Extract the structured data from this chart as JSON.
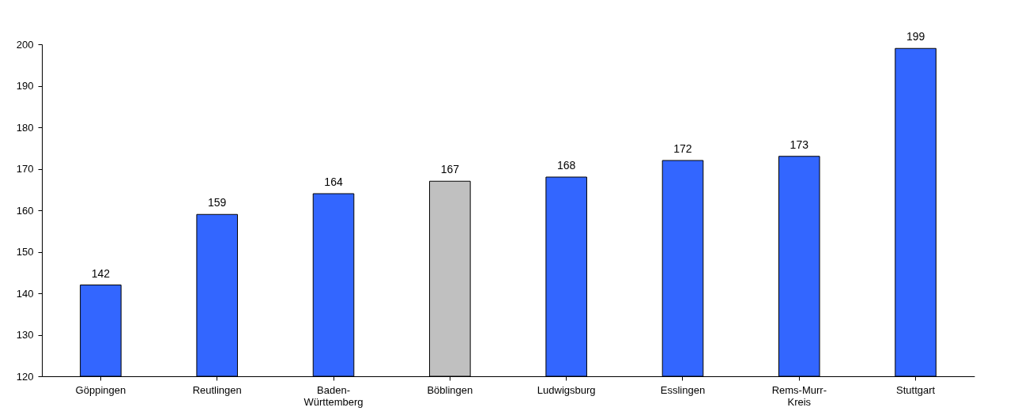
{
  "chart_data": {
    "type": "bar",
    "categories": [
      "Göppingen",
      "Reutlingen",
      "Baden-Württemberg",
      "Böblingen",
      "Ludwigsburg",
      "Esslingen",
      "Rems-Murr-Kreis",
      "Stuttgart"
    ],
    "values": [
      142,
      159,
      164,
      167,
      168,
      172,
      173,
      199
    ],
    "colors": [
      "#3366ff",
      "#3366ff",
      "#3366ff",
      "#c0c0c0",
      "#3366ff",
      "#3366ff",
      "#3366ff",
      "#3366ff"
    ],
    "ylim": [
      120,
      200
    ],
    "yticks": [
      120,
      130,
      140,
      150,
      160,
      170,
      180,
      190,
      200
    ],
    "grid": false,
    "data_labels": true
  }
}
